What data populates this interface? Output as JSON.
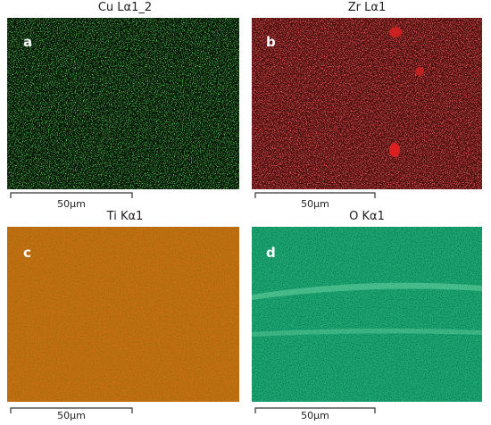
{
  "panels": [
    {
      "title": "Cu Lα1_2",
      "label": "a",
      "scale": "50μm"
    },
    {
      "title": "Zr Lα1",
      "label": "b",
      "scale": "50μm"
    },
    {
      "title": "Ti Kα1",
      "label": "c",
      "scale": "50μm"
    },
    {
      "title": "O Kα1",
      "label": "d",
      "scale": "50μm"
    }
  ]
}
